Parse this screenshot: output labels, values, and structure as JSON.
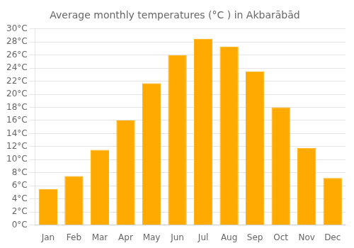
{
  "chart_data": {
    "type": "bar",
    "title": "Average monthly temperatures (°C ) in Akbarābād",
    "categories": [
      "Jan",
      "Feb",
      "Mar",
      "Apr",
      "May",
      "Jun",
      "Jul",
      "Aug",
      "Sep",
      "Oct",
      "Nov",
      "Dec"
    ],
    "values": [
      5.5,
      7.5,
      11.5,
      16.0,
      21.7,
      26.0,
      28.5,
      27.3,
      23.5,
      18.0,
      11.8,
      7.2
    ],
    "color": "#FFAA00",
    "ylim": [
      0,
      30
    ],
    "yticks": [
      {
        "value": 0,
        "label": "0°C"
      },
      {
        "value": 2,
        "label": "2°C"
      },
      {
        "value": 4,
        "label": "4°C"
      },
      {
        "value": 6,
        "label": "6°C"
      },
      {
        "value": 8,
        "label": "8°C"
      },
      {
        "value": 10,
        "label": "10°C"
      },
      {
        "value": 12,
        "label": "12°C"
      },
      {
        "value": 14,
        "label": "14°C"
      },
      {
        "value": 16,
        "label": "16°C"
      },
      {
        "value": 18,
        "label": "18°C"
      },
      {
        "value": 20,
        "label": "20°C"
      },
      {
        "value": 22,
        "label": "22°C"
      },
      {
        "value": 24,
        "label": "24°C"
      },
      {
        "value": 26,
        "label": "26°C"
      },
      {
        "value": 28,
        "label": "28°C"
      },
      {
        "value": 30,
        "label": "30°C"
      }
    ],
    "grid": true
  }
}
